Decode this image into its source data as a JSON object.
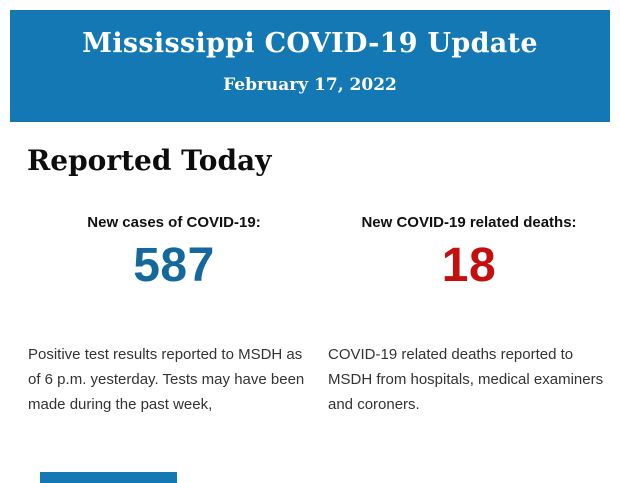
{
  "banner": {
    "title": "Mississippi COVID-19 Update",
    "date": "February 17, 2022",
    "bg_color": "#1478B4",
    "text_color": "#FFFFFF"
  },
  "main": {
    "heading": "Reported Today"
  },
  "stats": {
    "cases": {
      "label": "New cases of COVID-19:",
      "value": "587",
      "value_color": "#15689C",
      "description_lines": [
        "Positive test results reported to MSDH as",
        "of 6 p.m. yesterday. Tests may have been",
        "made during the past week,"
      ]
    },
    "deaths": {
      "label": "New COVID-19 related deaths:",
      "value": "18",
      "value_color": "#C50E0E",
      "description_lines": [
        "COVID-19 related deaths reported to",
        "MSDH from hospitals, medical examiners",
        "and coroners."
      ]
    }
  },
  "footer": {
    "partial_button_color": "#1478B4"
  }
}
